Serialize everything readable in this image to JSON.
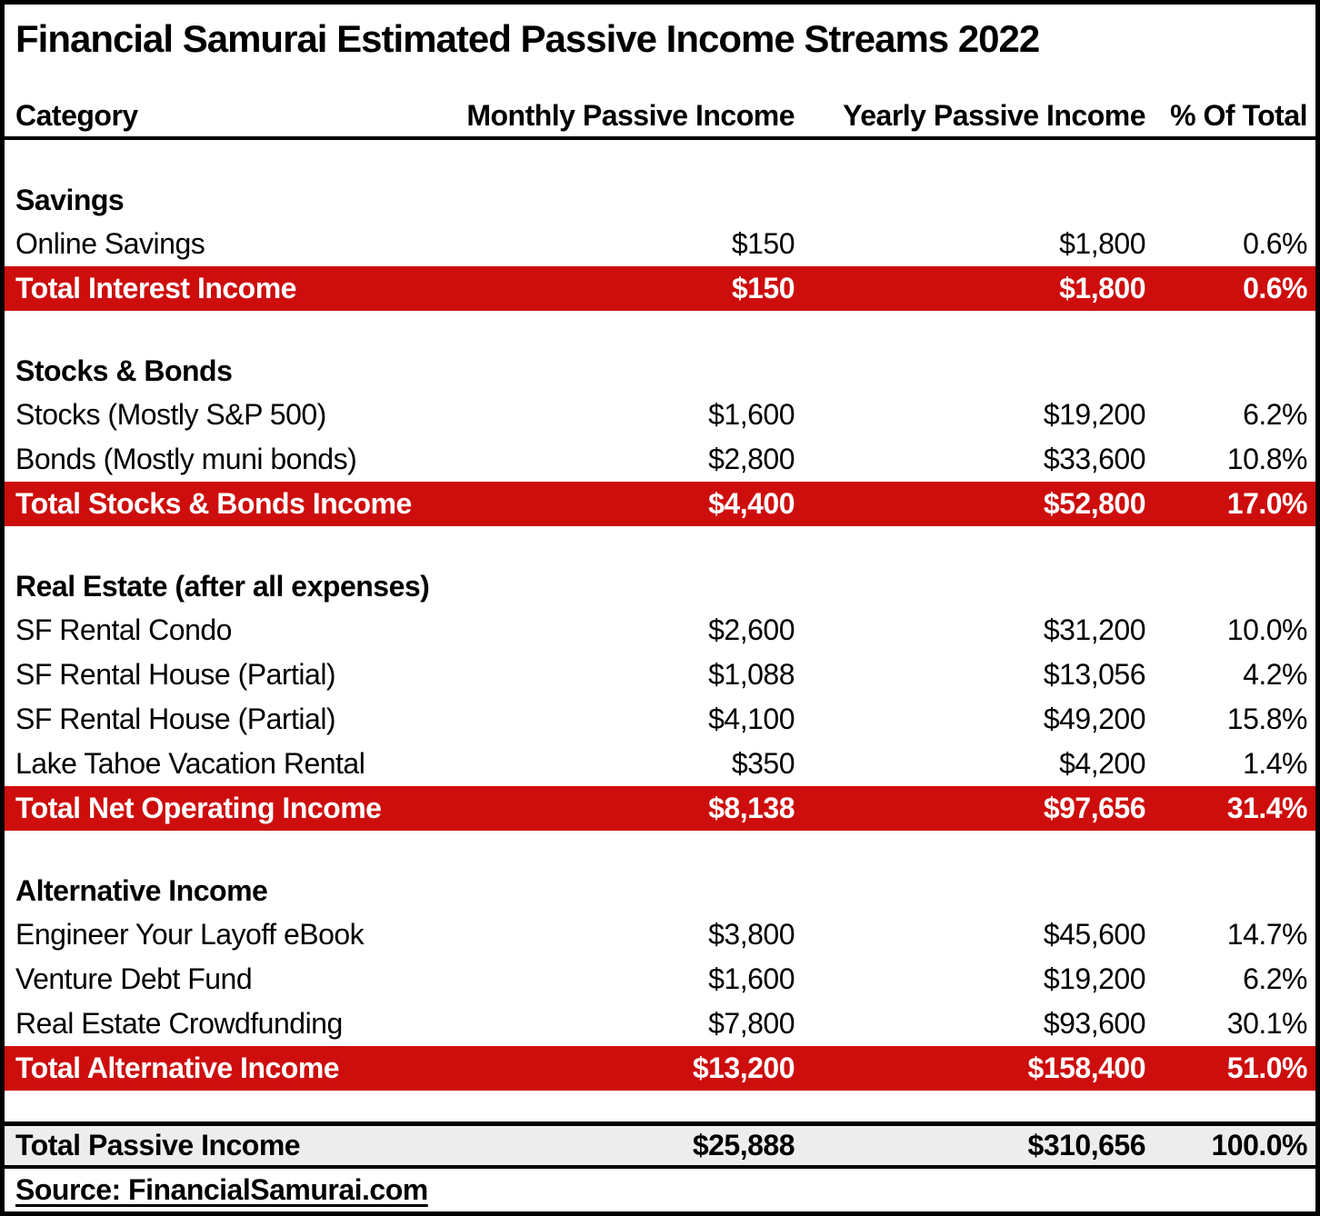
{
  "title": "Financial Samurai Estimated Passive Income Streams 2022",
  "columns": {
    "category": "Category",
    "monthly": "Monthly Passive Income",
    "yearly": "Yearly Passive Income",
    "pct": "% Of Total"
  },
  "sections": [
    {
      "name": "Savings",
      "rows": [
        {
          "label": "Online Savings",
          "monthly": "$150",
          "yearly": "$1,800",
          "pct": "0.6%"
        }
      ],
      "total": {
        "label": "Total Interest Income",
        "monthly": "$150",
        "yearly": "$1,800",
        "pct": "0.6%"
      }
    },
    {
      "name": "Stocks & Bonds",
      "rows": [
        {
          "label": "Stocks (Mostly S&P 500)",
          "monthly": "$1,600",
          "yearly": "$19,200",
          "pct": "6.2%"
        },
        {
          "label": "Bonds (Mostly muni bonds)",
          "monthly": "$2,800",
          "yearly": "$33,600",
          "pct": "10.8%"
        }
      ],
      "total": {
        "label": "Total Stocks & Bonds Income",
        "monthly": "$4,400",
        "yearly": "$52,800",
        "pct": "17.0%"
      }
    },
    {
      "name": "Real Estate (after all expenses)",
      "rows": [
        {
          "label": "SF Rental Condo",
          "monthly": "$2,600",
          "yearly": "$31,200",
          "pct": "10.0%"
        },
        {
          "label": "SF Rental House (Partial)",
          "monthly": "$1,088",
          "yearly": "$13,056",
          "pct": "4.2%"
        },
        {
          "label": "SF Rental House (Partial)",
          "monthly": "$4,100",
          "yearly": "$49,200",
          "pct": "15.8%"
        },
        {
          "label": "Lake Tahoe Vacation Rental",
          "monthly": "$350",
          "yearly": "$4,200",
          "pct": "1.4%"
        }
      ],
      "total": {
        "label": "Total Net Operating Income",
        "monthly": "$8,138",
        "yearly": "$97,656",
        "pct": "31.4%"
      }
    },
    {
      "name": "Alternative Income",
      "rows": [
        {
          "label": "Engineer Your Layoff eBook",
          "monthly": "$3,800",
          "yearly": "$45,600",
          "pct": "14.7%"
        },
        {
          "label": "Venture Debt Fund",
          "monthly": "$1,600",
          "yearly": "$19,200",
          "pct": "6.2%"
        },
        {
          "label": "Real Estate Crowdfunding",
          "monthly": "$7,800",
          "yearly": "$93,600",
          "pct": "30.1%"
        }
      ],
      "total": {
        "label": "Total Alternative Income",
        "monthly": "$13,200",
        "yearly": "$158,400",
        "pct": "51.0%"
      }
    }
  ],
  "grand_total": {
    "label": "Total Passive Income",
    "monthly": "$25,888",
    "yearly": "$310,656",
    "pct": "100.0%"
  },
  "source": "Source: FinancialSamurai.com",
  "colors": {
    "total_row_bg": "#ce0d0d",
    "total_row_text": "#ffffff",
    "grand_total_bg": "#ededed",
    "border": "#000000"
  },
  "chart_data": {
    "type": "table",
    "title": "Financial Samurai Estimated Passive Income Streams 2022",
    "columns": [
      "Category",
      "Monthly Passive Income",
      "Yearly Passive Income",
      "% Of Total"
    ],
    "sections": [
      {
        "name": "Savings",
        "rows": [
          {
            "category": "Online Savings",
            "monthly": 150,
            "yearly": 1800,
            "pct_of_total": 0.6
          }
        ],
        "total": {
          "category": "Total Interest Income",
          "monthly": 150,
          "yearly": 1800,
          "pct_of_total": 0.6
        }
      },
      {
        "name": "Stocks & Bonds",
        "rows": [
          {
            "category": "Stocks (Mostly S&P 500)",
            "monthly": 1600,
            "yearly": 19200,
            "pct_of_total": 6.2
          },
          {
            "category": "Bonds (Mostly muni bonds)",
            "monthly": 2800,
            "yearly": 33600,
            "pct_of_total": 10.8
          }
        ],
        "total": {
          "category": "Total Stocks & Bonds Income",
          "monthly": 4400,
          "yearly": 52800,
          "pct_of_total": 17.0
        }
      },
      {
        "name": "Real Estate (after all expenses)",
        "rows": [
          {
            "category": "SF Rental Condo",
            "monthly": 2600,
            "yearly": 31200,
            "pct_of_total": 10.0
          },
          {
            "category": "SF Rental House (Partial)",
            "monthly": 1088,
            "yearly": 13056,
            "pct_of_total": 4.2
          },
          {
            "category": "SF Rental House (Partial)",
            "monthly": 4100,
            "yearly": 49200,
            "pct_of_total": 15.8
          },
          {
            "category": "Lake Tahoe Vacation Rental",
            "monthly": 350,
            "yearly": 4200,
            "pct_of_total": 1.4
          }
        ],
        "total": {
          "category": "Total Net Operating Income",
          "monthly": 8138,
          "yearly": 97656,
          "pct_of_total": 31.4
        }
      },
      {
        "name": "Alternative Income",
        "rows": [
          {
            "category": "Engineer Your Layoff eBook",
            "monthly": 3800,
            "yearly": 45600,
            "pct_of_total": 14.7
          },
          {
            "category": "Venture Debt Fund",
            "monthly": 1600,
            "yearly": 19200,
            "pct_of_total": 6.2
          },
          {
            "category": "Real Estate Crowdfunding",
            "monthly": 7800,
            "yearly": 93600,
            "pct_of_total": 30.1
          }
        ],
        "total": {
          "category": "Total Alternative Income",
          "monthly": 13200,
          "yearly": 158400,
          "pct_of_total": 51.0
        }
      }
    ],
    "grand_total": {
      "category": "Total Passive Income",
      "monthly": 25888,
      "yearly": 310656,
      "pct_of_total": 100.0
    },
    "source": "Source: FinancialSamurai.com"
  }
}
